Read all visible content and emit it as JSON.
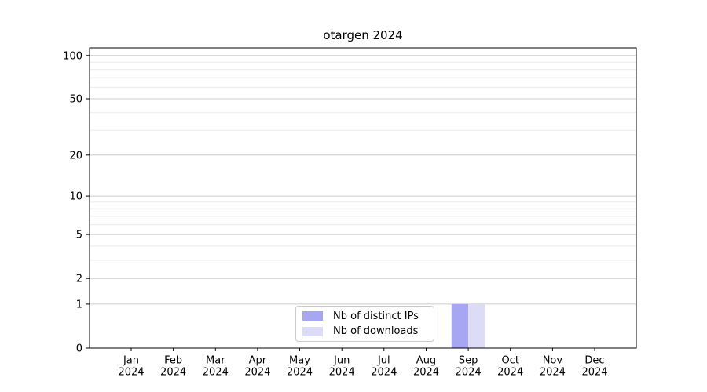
{
  "chart_data": {
    "type": "bar",
    "title": "otargen 2024",
    "categories": [
      "Jan 2024",
      "Feb 2024",
      "Mar 2024",
      "Apr 2024",
      "May 2024",
      "Jun 2024",
      "Jul 2024",
      "Aug 2024",
      "Sep 2024",
      "Oct 2024",
      "Nov 2024",
      "Dec 2024"
    ],
    "series": [
      {
        "name": "Nb of distinct IPs",
        "color": "#a6a6f2",
        "values": [
          0,
          0,
          0,
          0,
          0,
          0,
          0,
          0,
          1,
          0,
          0,
          0
        ]
      },
      {
        "name": "Nb of downloads",
        "color": "#dcdcf7",
        "values": [
          0,
          0,
          0,
          0,
          0,
          0,
          0,
          0,
          1,
          0,
          0,
          0
        ]
      }
    ],
    "xlabel": "",
    "ylabel": "",
    "yscale": "log1p",
    "ylim": [
      0,
      112
    ],
    "yticks": [
      0,
      1,
      2,
      5,
      10,
      20,
      50,
      100
    ],
    "yticks_minor": [
      3,
      4,
      6,
      7,
      8,
      9,
      30,
      40,
      60,
      70,
      80,
      90
    ],
    "grid": "horizontal",
    "legend_position": "lower-center",
    "colors": {
      "axis": "#000000",
      "grid_major": "#cccccc",
      "grid_minor": "#ebebeb",
      "background": "#ffffff"
    }
  }
}
